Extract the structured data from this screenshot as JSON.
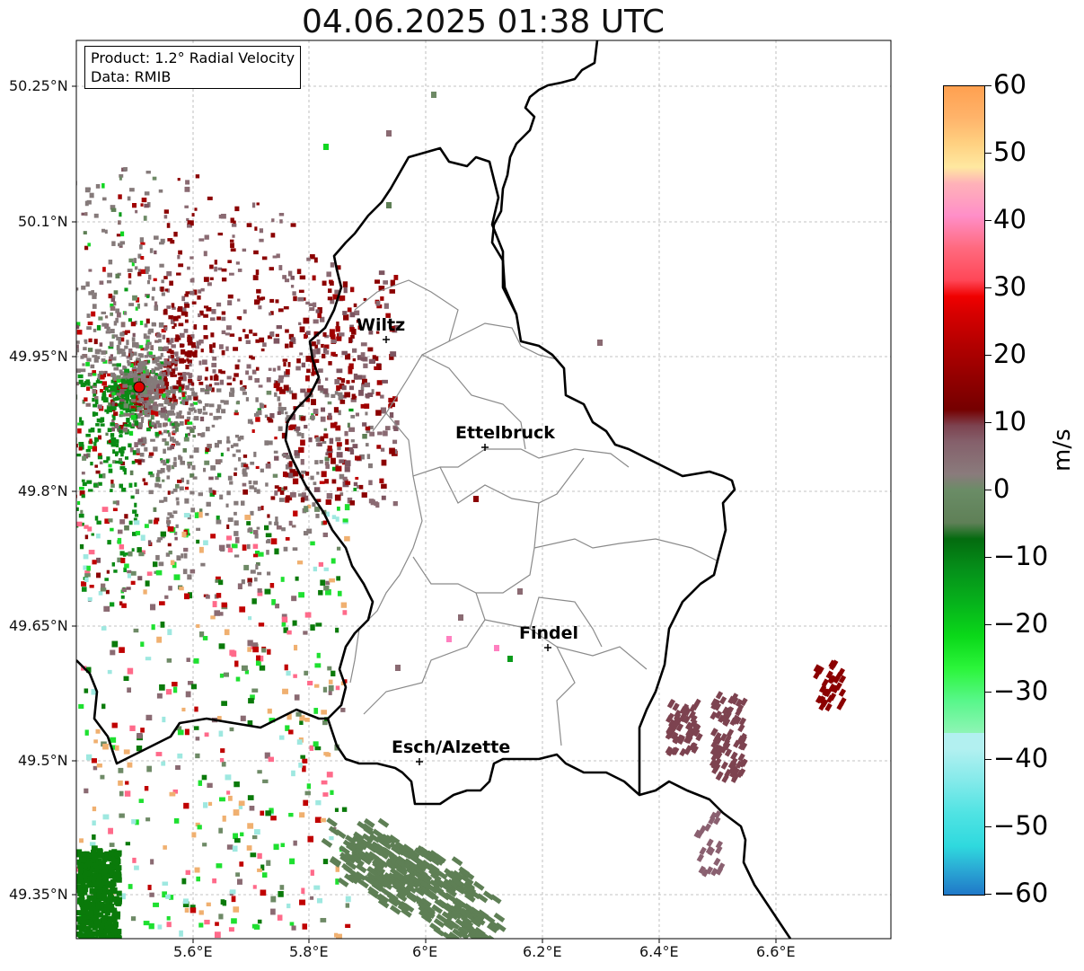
{
  "title": "04.06.2025 01:38 UTC",
  "info": {
    "product": "Product: 1.2° Radial Velocity",
    "data_source": "Data: RMIB"
  },
  "lat_ticks": [
    "50.25°N",
    "50.1°N",
    "49.95°N",
    "49.8°N",
    "49.65°N",
    "49.5°N",
    "49.35°N"
  ],
  "lon_ticks": [
    "5.6°E",
    "5.8°E",
    "6°E",
    "6.2°E",
    "6.4°E",
    "6.6°E"
  ],
  "cities": [
    {
      "name": "Wiltz"
    },
    {
      "name": "Ettelbruck"
    },
    {
      "name": "Findel"
    },
    {
      "name": "Esch/Alzette"
    }
  ],
  "colorbar": {
    "unit": "m/s",
    "labels": [
      "60",
      "50",
      "40",
      "30",
      "20",
      "10",
      "0",
      "−10",
      "−20",
      "−30",
      "−40",
      "−50",
      "−60"
    ]
  },
  "colors": {
    "border": "#000000",
    "district": "#808080",
    "radar_site": "#e00000"
  }
}
